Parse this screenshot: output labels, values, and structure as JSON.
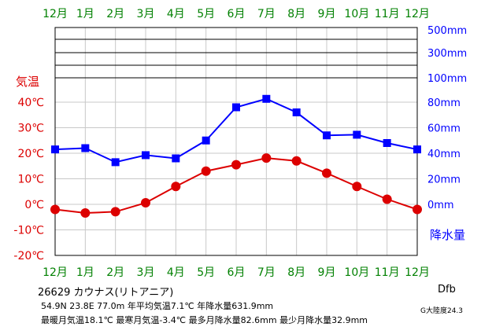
{
  "chart_data": {
    "type": "line",
    "categories": [
      "12月",
      "1月",
      "2月",
      "3月",
      "4月",
      "5月",
      "6月",
      "7月",
      "8月",
      "9月",
      "10月",
      "11月",
      "12月"
    ],
    "temperature": {
      "label": "気温",
      "unit": "℃",
      "color": "#dc0000",
      "values": [
        -2.0,
        -3.4,
        -2.9,
        0.6,
        7.0,
        13.0,
        15.5,
        18.1,
        17.0,
        12.2,
        7.0,
        2.0,
        -2.0
      ],
      "ticks": [
        "40℃",
        "30℃",
        "20℃",
        "10℃",
        "0℃",
        "-10℃",
        "-20℃"
      ],
      "ylim": [
        -20,
        40
      ]
    },
    "precipitation": {
      "label": "降水量",
      "unit": "mm",
      "color": "#0000ff",
      "values": [
        43.0,
        44.0,
        33.0,
        38.5,
        36.0,
        50.0,
        76.0,
        82.6,
        72.0,
        54.0,
        54.5,
        48.0,
        43.0
      ],
      "ticks": [
        "500mm",
        "300mm",
        "100mm",
        "80mm",
        "60mm",
        "40mm",
        "20mm",
        "0mm"
      ],
      "ylim": [
        0,
        100
      ]
    },
    "month_label_color": "#008000",
    "grid": true
  },
  "station": "26629  カウナス(リトアニア)",
  "info_line1": "54.9N  23.8E  77.0m  年平均気温7.1℃  年降水量631.9mm",
  "info_line2": "最暖月気温18.1℃ 最寒月気温-3.4℃ 最多月降水量82.6mm 最少月降水量32.9mm",
  "climate_class": "Dfb",
  "continentality": "G大陸度24.3"
}
